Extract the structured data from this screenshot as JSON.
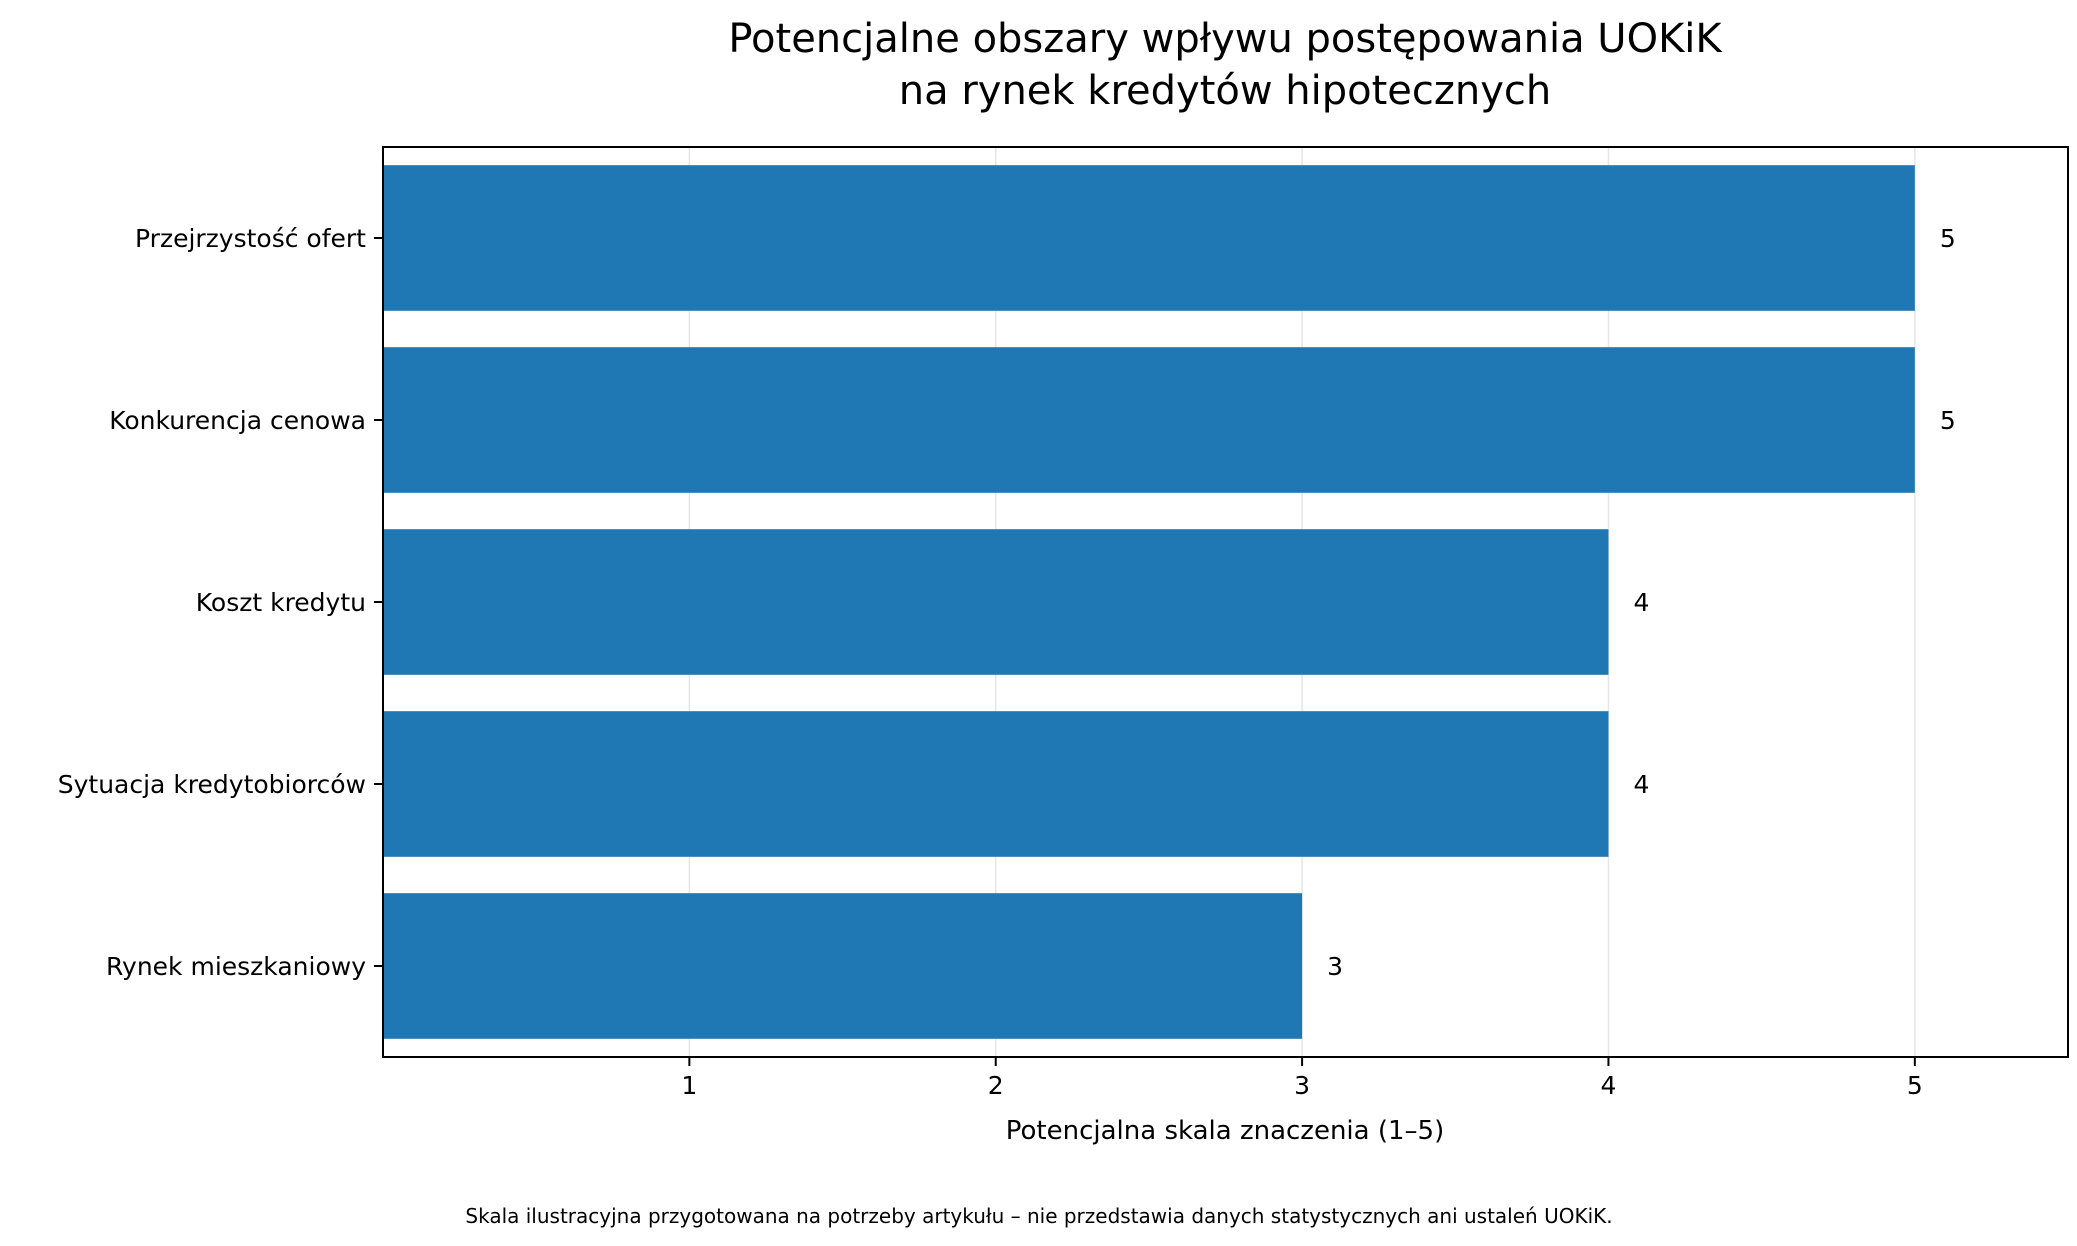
{
  "chart_data": {
    "type": "bar",
    "orientation": "horizontal",
    "title_lines": [
      "Potencjalne obszary wpływu postępowania UOKiK",
      "na rynek kredytów hipotecznych"
    ],
    "categories": [
      "Przejrzystość ofert",
      "Konkurencja cenowa",
      "Koszt kredytu",
      "Sytuacja kredytobiorców",
      "Rynek mieszkaniowy"
    ],
    "values": [
      5,
      5,
      4,
      4,
      3
    ],
    "data_labels": [
      "5",
      "5",
      "4",
      "4",
      "3"
    ],
    "xlabel": "Potencjalna skala znaczenia (1–5)",
    "ylabel": "",
    "xlim": [
      0,
      5.5
    ],
    "xticks": [
      1,
      2,
      3,
      4,
      5
    ],
    "grid": "vertical",
    "legend": "none",
    "bar_color": "#1f77b4",
    "footnote": "Skala ilustracyjna przygotowana na potrzeby artykułu – nie przedstawia danych statystycznych ani ustaleń UOKiK."
  }
}
